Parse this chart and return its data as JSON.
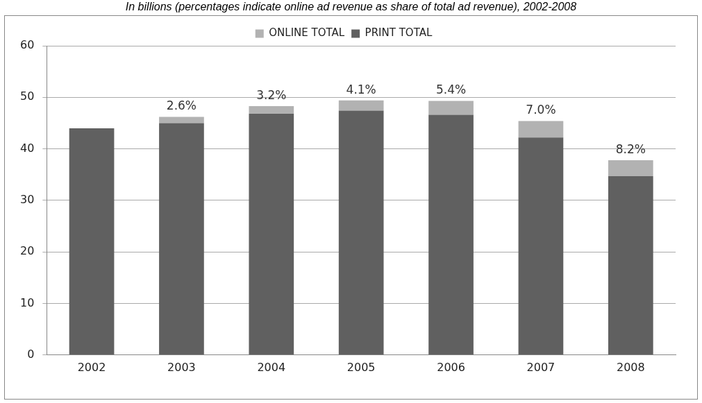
{
  "chart_data": {
    "type": "bar",
    "title": "In billions (percentages indicate online ad revenue as share of total ad revenue), 2002-2008",
    "categories": [
      "2002",
      "2003",
      "2004",
      "2005",
      "2006",
      "2007",
      "2008"
    ],
    "stacked": true,
    "series": [
      {
        "name": "PRINT TOTAL",
        "color": "#606060",
        "values": [
          44.0,
          45.0,
          46.8,
          47.4,
          46.6,
          42.2,
          34.7
        ]
      },
      {
        "name": "ONLINE TOTAL",
        "color": "#b2b2b2",
        "values": [
          null,
          1.2,
          1.5,
          2.0,
          2.7,
          3.2,
          3.1
        ]
      }
    ],
    "ylim": [
      0,
      60
    ],
    "yticks": [
      0,
      10,
      20,
      30,
      40,
      50,
      60
    ],
    "grid": "y",
    "legend": "top",
    "annotations": [
      {
        "text": "2.6%",
        "x": "2003",
        "y": 46.2
      },
      {
        "text": "3.2%",
        "x": "2004",
        "y": 48.3
      },
      {
        "text": "4.1%",
        "x": "2005",
        "y": 49.4
      },
      {
        "text": "5.4%",
        "x": "2006",
        "y": 49.3
      },
      {
        "text": "7.0%",
        "x": "2007",
        "y": 45.4
      },
      {
        "text": "8.2%",
        "x": "2008",
        "y": 37.8
      }
    ]
  }
}
